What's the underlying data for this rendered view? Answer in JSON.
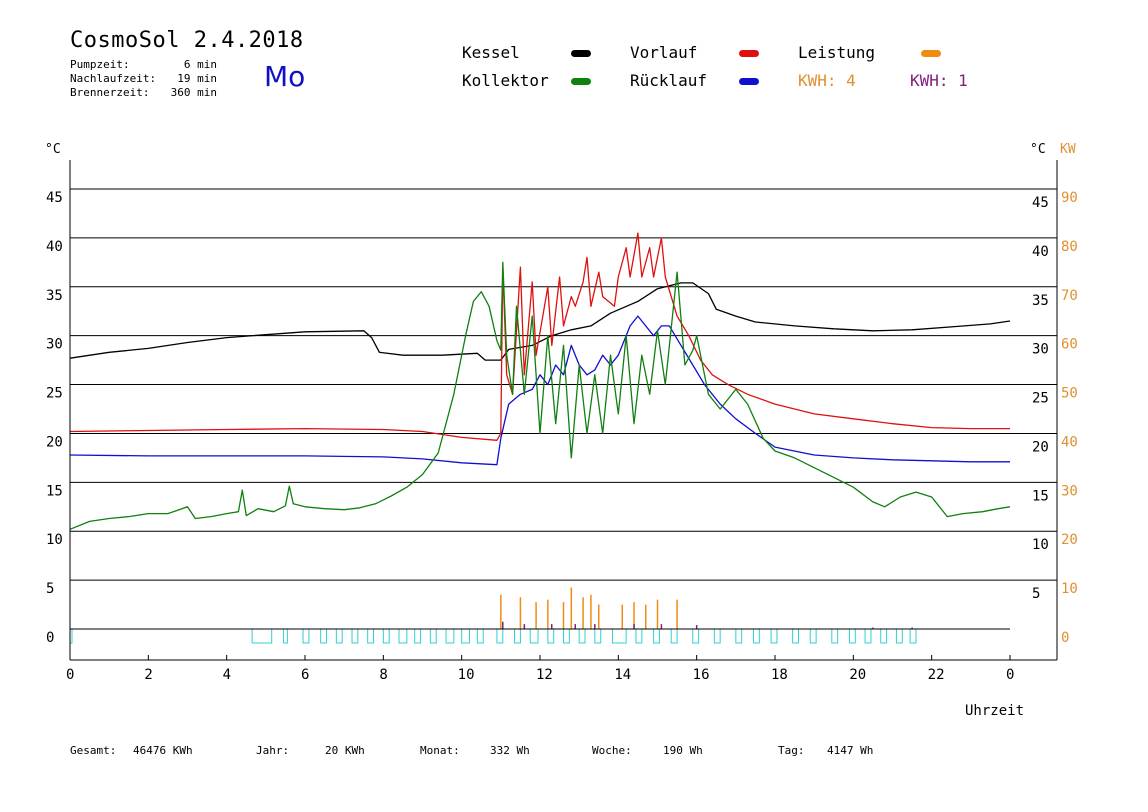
{
  "header": {
    "title": "CosmoSol 2.4.2018",
    "day": "Mo",
    "params": [
      {
        "label": "Pumpzeit:",
        "value": "6 min"
      },
      {
        "label": "Nachlaufzeit:",
        "value": "19 min"
      },
      {
        "label": "Brennerzeit:",
        "value": "360 min"
      }
    ]
  },
  "legend": {
    "kessel": {
      "label": "Kessel",
      "color": "#000000"
    },
    "vorlauf": {
      "label": "Vorlauf",
      "color": "#e01010"
    },
    "leistung": {
      "label": "Leistung",
      "color": "#f08c10"
    },
    "kollektor": {
      "label": "Kollektor",
      "color": "#108010"
    },
    "ruecklauf": {
      "label": "Rücklauf",
      "color": "#1010d0"
    },
    "kwh1": {
      "label": "KWH: 4",
      "color": "#e09030"
    },
    "kwh2": {
      "label": "KWH: 1",
      "color": "#802080"
    }
  },
  "footer": {
    "gesamt": {
      "label": "Gesamt:",
      "value": "46476 KWh"
    },
    "jahr": {
      "label": "Jahr:",
      "value": "20 KWh"
    },
    "monat": {
      "label": "Monat:",
      "value": "332 Wh"
    },
    "woche": {
      "label": "Woche:",
      "value": "190 Wh"
    },
    "tag": {
      "label": "Tag:",
      "value": "4147 Wh"
    }
  },
  "chart_data": {
    "type": "line",
    "xlabel": "Uhrzeit",
    "ylabel_left": "°C",
    "ylabel_right": "°C",
    "ylabel_right2": "KW",
    "xlim": [
      0,
      24
    ],
    "ylim": [
      0,
      45
    ],
    "ylim_right2": [
      0,
      90
    ],
    "x_ticks": [
      "0",
      "2",
      "4",
      "6",
      "8",
      "10",
      "12",
      "14",
      "16",
      "18",
      "20",
      "22",
      "0"
    ],
    "y_ticks_left": [
      "45",
      "40",
      "35",
      "30",
      "25",
      "20",
      "15",
      "10",
      "5",
      "0"
    ],
    "y_ticks_right": [
      "45",
      "40",
      "35",
      "30",
      "25",
      "20",
      "15",
      "10",
      "5"
    ],
    "y_ticks_right2": [
      "90",
      "80",
      "70",
      "60",
      "50",
      "40",
      "30",
      "20",
      "10",
      "0"
    ],
    "series": [
      {
        "name": "Kessel",
        "color": "#000000",
        "points": [
          [
            0,
            27.7
          ],
          [
            1,
            28.3
          ],
          [
            2,
            28.7
          ],
          [
            3,
            29.3
          ],
          [
            4,
            29.8
          ],
          [
            5,
            30.1
          ],
          [
            6,
            30.4
          ],
          [
            7.5,
            30.5
          ],
          [
            7.7,
            29.8
          ],
          [
            7.9,
            28.3
          ],
          [
            8.5,
            28.0
          ],
          [
            9.5,
            28.0
          ],
          [
            10.4,
            28.2
          ],
          [
            10.6,
            27.5
          ],
          [
            11.0,
            27.5
          ],
          [
            11.2,
            28.6
          ],
          [
            11.8,
            29.0
          ],
          [
            12.3,
            30.0
          ],
          [
            12.8,
            30.6
          ],
          [
            13.3,
            31.0
          ],
          [
            13.8,
            32.3
          ],
          [
            14.5,
            33.5
          ],
          [
            15.0,
            34.8
          ],
          [
            15.6,
            35.4
          ],
          [
            15.9,
            35.4
          ],
          [
            16.3,
            34.3
          ],
          [
            16.5,
            32.7
          ],
          [
            17.0,
            32.0
          ],
          [
            17.5,
            31.4
          ],
          [
            18.5,
            31.0
          ],
          [
            19.5,
            30.7
          ],
          [
            20.5,
            30.5
          ],
          [
            21.5,
            30.6
          ],
          [
            22.5,
            30.9
          ],
          [
            23.5,
            31.2
          ],
          [
            24,
            31.5
          ]
        ]
      },
      {
        "name": "Vorlauf",
        "color": "#e01010",
        "points": [
          [
            0,
            20.2
          ],
          [
            2,
            20.3
          ],
          [
            4,
            20.4
          ],
          [
            6,
            20.5
          ],
          [
            8,
            20.4
          ],
          [
            9,
            20.2
          ],
          [
            10,
            19.6
          ],
          [
            10.9,
            19.3
          ],
          [
            11.0,
            20.0
          ],
          [
            11.05,
            37.0
          ],
          [
            11.15,
            26.0
          ],
          [
            11.3,
            24.0
          ],
          [
            11.5,
            37.0
          ],
          [
            11.6,
            26.0
          ],
          [
            11.8,
            35.5
          ],
          [
            11.9,
            28.0
          ],
          [
            12.2,
            35.0
          ],
          [
            12.3,
            29.0
          ],
          [
            12.5,
            36.0
          ],
          [
            12.6,
            31.0
          ],
          [
            12.8,
            34.0
          ],
          [
            12.9,
            33.0
          ],
          [
            13.1,
            35.5
          ],
          [
            13.2,
            38.0
          ],
          [
            13.3,
            33.0
          ],
          [
            13.5,
            36.5
          ],
          [
            13.6,
            34.0
          ],
          [
            13.9,
            33.0
          ],
          [
            14.0,
            36.0
          ],
          [
            14.2,
            39.0
          ],
          [
            14.3,
            36.0
          ],
          [
            14.5,
            40.5
          ],
          [
            14.6,
            36.0
          ],
          [
            14.8,
            39.0
          ],
          [
            14.9,
            36.0
          ],
          [
            15.1,
            40.0
          ],
          [
            15.2,
            36.0
          ],
          [
            15.5,
            32.0
          ],
          [
            15.8,
            30.0
          ],
          [
            16.1,
            27.5
          ],
          [
            16.4,
            26.0
          ],
          [
            16.8,
            25.0
          ],
          [
            17.3,
            24.0
          ],
          [
            18.0,
            23.0
          ],
          [
            19.0,
            22.0
          ],
          [
            20.0,
            21.5
          ],
          [
            21.0,
            21.0
          ],
          [
            22.0,
            20.6
          ],
          [
            23.0,
            20.5
          ],
          [
            24,
            20.5
          ]
        ]
      },
      {
        "name": "Rücklauf",
        "color": "#1010d0",
        "points": [
          [
            0,
            17.8
          ],
          [
            2,
            17.7
          ],
          [
            4,
            17.7
          ],
          [
            6,
            17.7
          ],
          [
            8,
            17.6
          ],
          [
            9,
            17.4
          ],
          [
            10,
            17.0
          ],
          [
            10.9,
            16.8
          ],
          [
            11.0,
            19.5
          ],
          [
            11.2,
            23.0
          ],
          [
            11.5,
            24.0
          ],
          [
            11.8,
            24.5
          ],
          [
            12.0,
            26.0
          ],
          [
            12.2,
            25.0
          ],
          [
            12.4,
            27.0
          ],
          [
            12.6,
            26.0
          ],
          [
            12.8,
            29.0
          ],
          [
            13.0,
            27.0
          ],
          [
            13.2,
            26.0
          ],
          [
            13.4,
            26.5
          ],
          [
            13.6,
            28.0
          ],
          [
            13.8,
            27.0
          ],
          [
            14.0,
            28.0
          ],
          [
            14.3,
            31.0
          ],
          [
            14.5,
            32.0
          ],
          [
            14.7,
            31.0
          ],
          [
            14.9,
            30.0
          ],
          [
            15.1,
            31.0
          ],
          [
            15.3,
            31.0
          ],
          [
            15.6,
            29.0
          ],
          [
            15.9,
            27.0
          ],
          [
            16.2,
            25.0
          ],
          [
            16.6,
            23.0
          ],
          [
            17.0,
            21.5
          ],
          [
            17.5,
            20.0
          ],
          [
            18.0,
            18.6
          ],
          [
            19.0,
            17.8
          ],
          [
            20.0,
            17.5
          ],
          [
            21.0,
            17.3
          ],
          [
            22.0,
            17.2
          ],
          [
            23.0,
            17.1
          ],
          [
            24,
            17.1
          ]
        ]
      },
      {
        "name": "Kollektor",
        "color": "#108010",
        "points": [
          [
            0,
            10.2
          ],
          [
            0.5,
            11.0
          ],
          [
            1,
            11.3
          ],
          [
            1.5,
            11.5
          ],
          [
            2,
            11.8
          ],
          [
            2.5,
            11.8
          ],
          [
            3,
            12.5
          ],
          [
            3.2,
            11.3
          ],
          [
            3.6,
            11.5
          ],
          [
            4,
            11.8
          ],
          [
            4.3,
            12.0
          ],
          [
            4.4,
            14.2
          ],
          [
            4.5,
            11.6
          ],
          [
            4.8,
            12.3
          ],
          [
            5.2,
            12.0
          ],
          [
            5.5,
            12.6
          ],
          [
            5.6,
            14.6
          ],
          [
            5.7,
            12.8
          ],
          [
            6,
            12.5
          ],
          [
            6.5,
            12.3
          ],
          [
            7,
            12.2
          ],
          [
            7.4,
            12.4
          ],
          [
            7.8,
            12.8
          ],
          [
            8.2,
            13.6
          ],
          [
            8.6,
            14.5
          ],
          [
            9.0,
            15.8
          ],
          [
            9.4,
            18.0
          ],
          [
            9.8,
            24.0
          ],
          [
            10.1,
            30.0
          ],
          [
            10.3,
            33.5
          ],
          [
            10.5,
            34.5
          ],
          [
            10.7,
            33.0
          ],
          [
            10.9,
            29.5
          ],
          [
            11.0,
            28.5
          ],
          [
            11.05,
            37.5
          ],
          [
            11.15,
            28.0
          ],
          [
            11.3,
            24.0
          ],
          [
            11.4,
            33.0
          ],
          [
            11.6,
            24.0
          ],
          [
            11.8,
            32.0
          ],
          [
            12.0,
            20.0
          ],
          [
            12.2,
            30.0
          ],
          [
            12.4,
            21.0
          ],
          [
            12.6,
            29.0
          ],
          [
            12.8,
            17.5
          ],
          [
            13.0,
            27.0
          ],
          [
            13.2,
            20.0
          ],
          [
            13.4,
            26.0
          ],
          [
            13.6,
            20.0
          ],
          [
            13.8,
            28.0
          ],
          [
            14.0,
            22.0
          ],
          [
            14.2,
            30.0
          ],
          [
            14.4,
            21.0
          ],
          [
            14.6,
            28.0
          ],
          [
            14.8,
            24.0
          ],
          [
            15.0,
            30.5
          ],
          [
            15.2,
            25.0
          ],
          [
            15.5,
            36.5
          ],
          [
            15.7,
            27.0
          ],
          [
            15.9,
            28.5
          ],
          [
            16.0,
            30.0
          ],
          [
            16.3,
            24.0
          ],
          [
            16.6,
            22.5
          ],
          [
            17.0,
            24.5
          ],
          [
            17.3,
            23.0
          ],
          [
            17.7,
            19.5
          ],
          [
            18.0,
            18.2
          ],
          [
            18.5,
            17.5
          ],
          [
            19.0,
            16.5
          ],
          [
            19.5,
            15.5
          ],
          [
            20.0,
            14.5
          ],
          [
            20.5,
            13.0
          ],
          [
            20.8,
            12.5
          ],
          [
            21.2,
            13.5
          ],
          [
            21.6,
            14.0
          ],
          [
            22.0,
            13.5
          ],
          [
            22.2,
            12.5
          ],
          [
            22.4,
            11.5
          ],
          [
            22.8,
            11.8
          ],
          [
            23.3,
            12.0
          ],
          [
            23.7,
            12.3
          ],
          [
            24,
            12.5
          ]
        ]
      }
    ],
    "bars": [
      {
        "name": "Leistung",
        "color": "#f08c10",
        "values_kw": [
          [
            11.0,
            7
          ],
          [
            11.5,
            6.5
          ],
          [
            11.9,
            5.5
          ],
          [
            12.2,
            6
          ],
          [
            12.6,
            5.5
          ],
          [
            12.8,
            8.5
          ],
          [
            13.1,
            6.5
          ],
          [
            13.3,
            7
          ],
          [
            13.5,
            5
          ],
          [
            14.1,
            5
          ],
          [
            14.4,
            5.5
          ],
          [
            14.7,
            5
          ],
          [
            15.0,
            6
          ],
          [
            15.5,
            6
          ]
        ]
      },
      {
        "name": "KWH",
        "color": "#802080",
        "values_kw": [
          [
            11.05,
            1.5
          ],
          [
            11.6,
            1
          ],
          [
            12.3,
            1
          ],
          [
            12.9,
            1
          ],
          [
            13.4,
            1
          ],
          [
            14.4,
            1
          ],
          [
            15.1,
            1
          ],
          [
            16.0,
            0.8
          ],
          [
            20.5,
            0.3
          ],
          [
            21.5,
            0.3
          ]
        ]
      }
    ],
    "burner_cycles": [
      [
        0.0,
        0.05
      ],
      [
        4.65,
        5.15
      ],
      [
        5.45,
        5.55
      ],
      [
        5.95,
        6.1
      ],
      [
        6.4,
        6.55
      ],
      [
        6.8,
        6.95
      ],
      [
        7.2,
        7.35
      ],
      [
        7.6,
        7.75
      ],
      [
        8.0,
        8.15
      ],
      [
        8.4,
        8.6
      ],
      [
        8.8,
        8.95
      ],
      [
        9.2,
        9.35
      ],
      [
        9.6,
        9.8
      ],
      [
        10.0,
        10.2
      ],
      [
        10.4,
        10.55
      ],
      [
        10.9,
        11.05
      ],
      [
        11.35,
        11.5
      ],
      [
        11.75,
        11.95
      ],
      [
        12.2,
        12.35
      ],
      [
        12.6,
        12.75
      ],
      [
        13.0,
        13.15
      ],
      [
        13.4,
        13.55
      ],
      [
        13.85,
        14.2
      ],
      [
        14.45,
        14.6
      ],
      [
        14.9,
        15.05
      ],
      [
        15.35,
        15.5
      ],
      [
        15.9,
        16.05
      ],
      [
        16.45,
        16.6
      ],
      [
        17.0,
        17.15
      ],
      [
        17.45,
        17.6
      ],
      [
        17.9,
        18.05
      ],
      [
        18.45,
        18.6
      ],
      [
        18.9,
        19.05
      ],
      [
        19.45,
        19.6
      ],
      [
        19.9,
        20.05
      ],
      [
        20.3,
        20.45
      ],
      [
        20.7,
        20.85
      ],
      [
        21.1,
        21.25
      ],
      [
        21.45,
        21.6
      ]
    ]
  }
}
